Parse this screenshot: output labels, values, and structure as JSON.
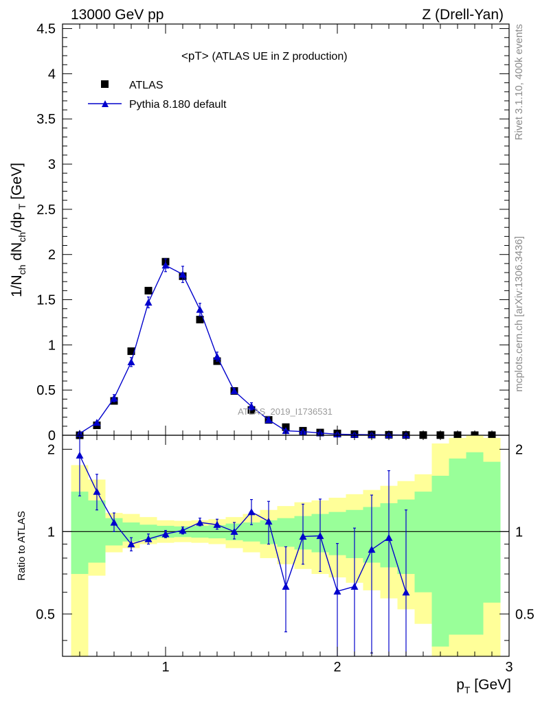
{
  "header": {
    "left": "13000 GeV pp",
    "right": "Z (Drell-Yan)"
  },
  "sidebar": {
    "rivet": "Rivet 3.1.10,  400k events",
    "mcplots": "mcplots.cern.ch [arXiv:1306.3436]"
  },
  "chart_data": [
    {
      "type": "scatter",
      "title_main": "<pT>",
      "title_sub": "(ATLAS UE in Z production)",
      "watermark": "ATLAS_2019_I1736531",
      "ylabel": "1/N_ch dN_ch/dp_T [GeV]",
      "xlim": [
        0.4,
        3.0
      ],
      "ylim": [
        0,
        4.55
      ],
      "yticks": [
        0,
        0.5,
        1,
        1.5,
        2,
        2.5,
        3,
        3.5,
        4,
        4.5
      ],
      "ytick_labels": [
        "0",
        "0.5",
        "1",
        "1.5",
        "2",
        "2.5",
        "3",
        "3.5",
        "4",
        "4.5"
      ],
      "legend": [
        "ATLAS",
        "Pythia 8.180 default"
      ],
      "x": [
        0.5,
        0.6,
        0.7,
        0.8,
        0.9,
        1.0,
        1.1,
        1.2,
        1.3,
        1.4,
        1.5,
        1.6,
        1.7,
        1.8,
        1.9,
        2.0,
        2.1,
        2.2,
        2.3,
        2.4,
        2.5,
        2.6,
        2.7,
        2.8,
        2.9
      ],
      "series": [
        {
          "name": "ATLAS",
          "values": [
            0.0,
            0.11,
            0.38,
            0.93,
            1.6,
            1.92,
            1.76,
            1.28,
            0.82,
            0.49,
            0.28,
            0.17,
            0.09,
            0.05,
            0.03,
            0.02,
            0.012,
            0.008,
            0.005,
            0.003,
            0.002,
            0.0015,
            0.001,
            0.0008,
            0.0005
          ]
        },
        {
          "name": "Pythia 8.180 default",
          "values": [
            0.02,
            0.14,
            0.41,
            0.81,
            1.47,
            1.88,
            1.78,
            1.39,
            0.87,
            0.49,
            0.32,
            0.17,
            0.05,
            0.04,
            0.025,
            0.012,
            0.008,
            0.006,
            0.004,
            0.002
          ],
          "errors": [
            0.01,
            0.02,
            0.04,
            0.05,
            0.06,
            0.07,
            0.09,
            0.07,
            0.05,
            0.03,
            0.04,
            0.03,
            0.01,
            0.01,
            0.005,
            0.003,
            0.003,
            0.003,
            0.002,
            0.001
          ]
        }
      ]
    },
    {
      "type": "line",
      "ylabel": "Ratio to ATLAS",
      "xlabel": "p_T [GeV]",
      "xlim": [
        0.4,
        3.0
      ],
      "ylim": [
        0.35,
        2.25
      ],
      "xticks": [
        1,
        2,
        3
      ],
      "xtick_labels": [
        "1",
        "2",
        "3"
      ],
      "yticks": [
        0.5,
        1,
        2
      ],
      "ytick_labels": [
        "0.5",
        "1",
        "2"
      ],
      "bins": [
        0.45,
        0.55,
        0.65,
        0.75,
        0.85,
        0.95,
        1.05,
        1.15,
        1.25,
        1.35,
        1.45,
        1.55,
        1.65,
        1.75,
        1.85,
        1.95,
        2.05,
        2.15,
        2.25,
        2.35,
        2.45,
        2.55,
        2.65,
        2.75,
        2.85,
        2.95
      ],
      "band_green": [
        [
          0.7,
          1.4
        ],
        [
          0.77,
          1.3
        ],
        [
          0.89,
          1.12
        ],
        [
          0.92,
          1.08
        ],
        [
          0.935,
          1.06
        ],
        [
          0.95,
          1.05
        ],
        [
          0.955,
          1.045
        ],
        [
          0.95,
          1.05
        ],
        [
          0.945,
          1.055
        ],
        [
          0.93,
          1.07
        ],
        [
          0.92,
          1.08
        ],
        [
          0.9,
          1.1
        ],
        [
          0.88,
          1.12
        ],
        [
          0.86,
          1.14
        ],
        [
          0.84,
          1.16
        ],
        [
          0.82,
          1.18
        ],
        [
          0.8,
          1.2
        ],
        [
          0.77,
          1.23
        ],
        [
          0.74,
          1.27
        ],
        [
          0.7,
          1.31
        ],
        [
          0.6,
          1.4
        ],
        [
          0.38,
          1.6
        ],
        [
          0.42,
          1.85
        ],
        [
          0.42,
          1.95
        ],
        [
          0.55,
          1.8
        ],
        [
          0.55,
          1.8
        ]
      ],
      "band_yellow": [
        [
          0.35,
          1.75
        ],
        [
          0.69,
          1.55
        ],
        [
          0.84,
          1.17
        ],
        [
          0.87,
          1.16
        ],
        [
          0.9,
          1.13
        ],
        [
          0.91,
          1.1
        ],
        [
          0.915,
          1.095
        ],
        [
          0.91,
          1.1
        ],
        [
          0.9,
          1.11
        ],
        [
          0.87,
          1.13
        ],
        [
          0.84,
          1.16
        ],
        [
          0.8,
          1.2
        ],
        [
          0.76,
          1.24
        ],
        [
          0.73,
          1.28
        ],
        [
          0.7,
          1.3
        ],
        [
          0.68,
          1.33
        ],
        [
          0.65,
          1.37
        ],
        [
          0.61,
          1.42
        ],
        [
          0.57,
          1.47
        ],
        [
          0.52,
          1.53
        ],
        [
          0.46,
          1.62
        ],
        [
          0.35,
          2.1
        ],
        [
          0.35,
          2.2
        ],
        [
          0.35,
          2.25
        ],
        [
          0.35,
          2.2
        ],
        [
          0.35,
          2.2
        ]
      ],
      "series": [
        {
          "name": "Pythia 8.180 default",
          "x": [
            0.5,
            0.6,
            0.7,
            0.8,
            0.9,
            1.0,
            1.1,
            1.2,
            1.3,
            1.4,
            1.5,
            1.6,
            1.7,
            1.8,
            1.9,
            2.0,
            2.1,
            2.2,
            2.3,
            2.4
          ],
          "values": [
            1.9,
            1.4,
            1.08,
            0.9,
            0.94,
            0.98,
            1.01,
            1.08,
            1.06,
            1.0,
            1.18,
            1.09,
            0.63,
            0.96,
            0.965,
            0.605,
            0.63,
            0.86,
            0.95,
            0.6
          ],
          "err_low": [
            0.55,
            0.2,
            0.08,
            0.05,
            0.04,
            0.03,
            0.03,
            0.03,
            0.04,
            0.06,
            0.12,
            0.19,
            0.2,
            0.2,
            0.25,
            0.3,
            0.3,
            0.5,
            0.6,
            0.3
          ],
          "err_high": [
            0.4,
            0.22,
            0.09,
            0.05,
            0.04,
            0.03,
            0.03,
            0.04,
            0.05,
            0.08,
            0.13,
            0.2,
            0.25,
            0.3,
            0.35,
            0.3,
            0.4,
            0.5,
            0.72,
            0.6
          ]
        }
      ]
    }
  ]
}
